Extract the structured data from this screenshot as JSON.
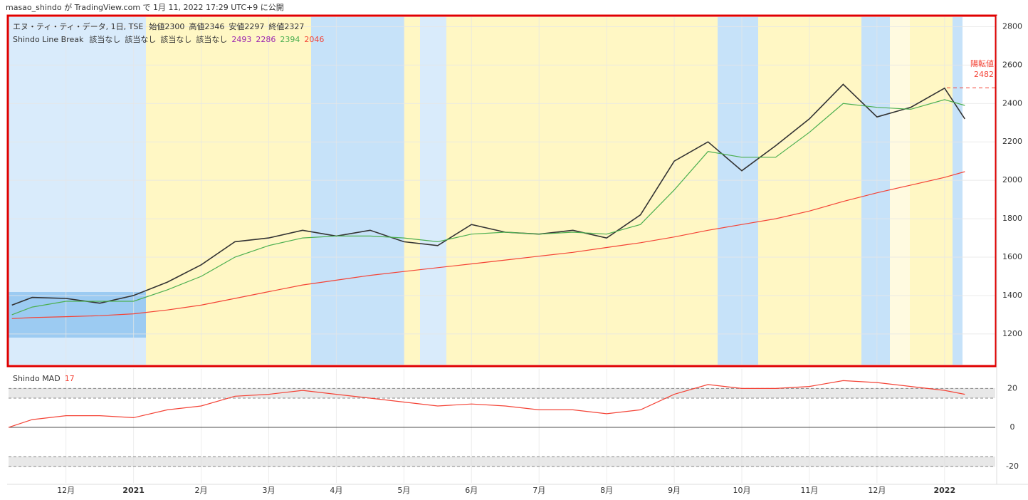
{
  "published": "masao_shindo が TradingView.com で 1月 11, 2022 17:29 UTC+9 に公開",
  "chart_data": [
    {
      "type": "line",
      "title": "エヌ・ティ・ティ・データ, 1日, TSE",
      "ohlc": [
        "始値2300",
        "高値2346",
        "安値2297",
        "終値2327"
      ],
      "indicator": {
        "name": "Shindo Line Break",
        "status": [
          "該当なし",
          "該当なし",
          "該当なし",
          "該当なし"
        ],
        "values": [
          2493,
          2286,
          2394,
          2046
        ],
        "colors": [
          "#9c27b0",
          "#9c27b0",
          "#4caf50",
          "#f44336"
        ]
      },
      "annotation": {
        "label": "陽転値",
        "value": 2482,
        "color": "#f44336"
      },
      "xlim": [
        -0.85,
        13.75
      ],
      "ylim": [
        1040,
        2850
      ],
      "yticks": [
        1200,
        1400,
        1600,
        1800,
        2000,
        2200,
        2400,
        2600,
        2800
      ],
      "grid": true,
      "x": [
        -0.8,
        -0.5,
        0,
        0.5,
        1,
        1.5,
        2,
        2.5,
        3,
        3.5,
        4,
        4.5,
        5,
        5.5,
        6,
        6.5,
        7,
        7.5,
        8,
        8.5,
        9,
        9.5,
        10,
        10.5,
        11,
        11.5,
        12,
        12.5,
        13,
        13.3
      ],
      "series": [
        {
          "name": "エヌ・ティ・ティ・データ, 1日, TSE",
          "color": "#333333",
          "values": [
            1350,
            1390,
            1385,
            1360,
            1400,
            1470,
            1560,
            1680,
            1700,
            1740,
            1710,
            1740,
            1680,
            1660,
            1770,
            1730,
            1720,
            1740,
            1700,
            1820,
            2100,
            2200,
            2050,
            2180,
            2320,
            2500,
            2330,
            2380,
            2480,
            2320
          ]
        },
        {
          "color": "#4caf50",
          "values": [
            1300,
            1340,
            1370,
            1370,
            1370,
            1430,
            1500,
            1600,
            1660,
            1700,
            1710,
            1710,
            1700,
            1680,
            1720,
            1730,
            1720,
            1730,
            1720,
            1770,
            1950,
            2150,
            2120,
            2120,
            2250,
            2400,
            2380,
            2370,
            2420,
            2390
          ]
        },
        {
          "color": "#f44336",
          "values": [
            1280,
            1285,
            1290,
            1295,
            1305,
            1325,
            1350,
            1385,
            1420,
            1455,
            1480,
            1505,
            1525,
            1545,
            1565,
            1585,
            1605,
            1625,
            1650,
            1675,
            1705,
            1740,
            1770,
            1800,
            1840,
            1890,
            1935,
            1975,
            2015,
            2045
          ]
        }
      ]
    },
    {
      "type": "line",
      "title": "Shindo MAD",
      "last_value": 17,
      "last_color": "#f44336",
      "xlim": [
        -0.85,
        13.75
      ],
      "ylim": [
        -28.5,
        30
      ],
      "yticks": [
        -20,
        0,
        20
      ],
      "band_levels": [
        -20,
        -15,
        15,
        20
      ],
      "xticks": [
        {
          "value": 0,
          "label": "12月"
        },
        {
          "value": 1,
          "label": "2021"
        },
        {
          "value": 2,
          "label": "2月"
        },
        {
          "value": 3,
          "label": "3月"
        },
        {
          "value": 4,
          "label": "4月"
        },
        {
          "value": 5,
          "label": "5月"
        },
        {
          "value": 6,
          "label": "6月"
        },
        {
          "value": 7,
          "label": "7月"
        },
        {
          "value": 8,
          "label": "8月"
        },
        {
          "value": 9,
          "label": "9月"
        },
        {
          "value": 10,
          "label": "10月"
        },
        {
          "value": 11,
          "label": "11月"
        },
        {
          "value": 12,
          "label": "12月"
        },
        {
          "value": 13,
          "label": "2022"
        }
      ],
      "x": [
        -0.85,
        -0.5,
        0,
        0.5,
        1,
        1.5,
        2,
        2.5,
        3,
        3.5,
        4,
        4.5,
        5,
        5.5,
        6,
        6.5,
        7,
        7.5,
        8,
        8.5,
        9,
        9.5,
        10,
        10.5,
        11,
        11.5,
        12,
        12.5,
        13,
        13.3
      ],
      "series": [
        {
          "color": "#f44336",
          "values": [
            0,
            4,
            6,
            6,
            5,
            9,
            11,
            16,
            17,
            19,
            17,
            15,
            13,
            11,
            12,
            11,
            9,
            9,
            7,
            9,
            17,
            22,
            20,
            20,
            21,
            24,
            23,
            21,
            19,
            17
          ]
        }
      ]
    }
  ]
}
